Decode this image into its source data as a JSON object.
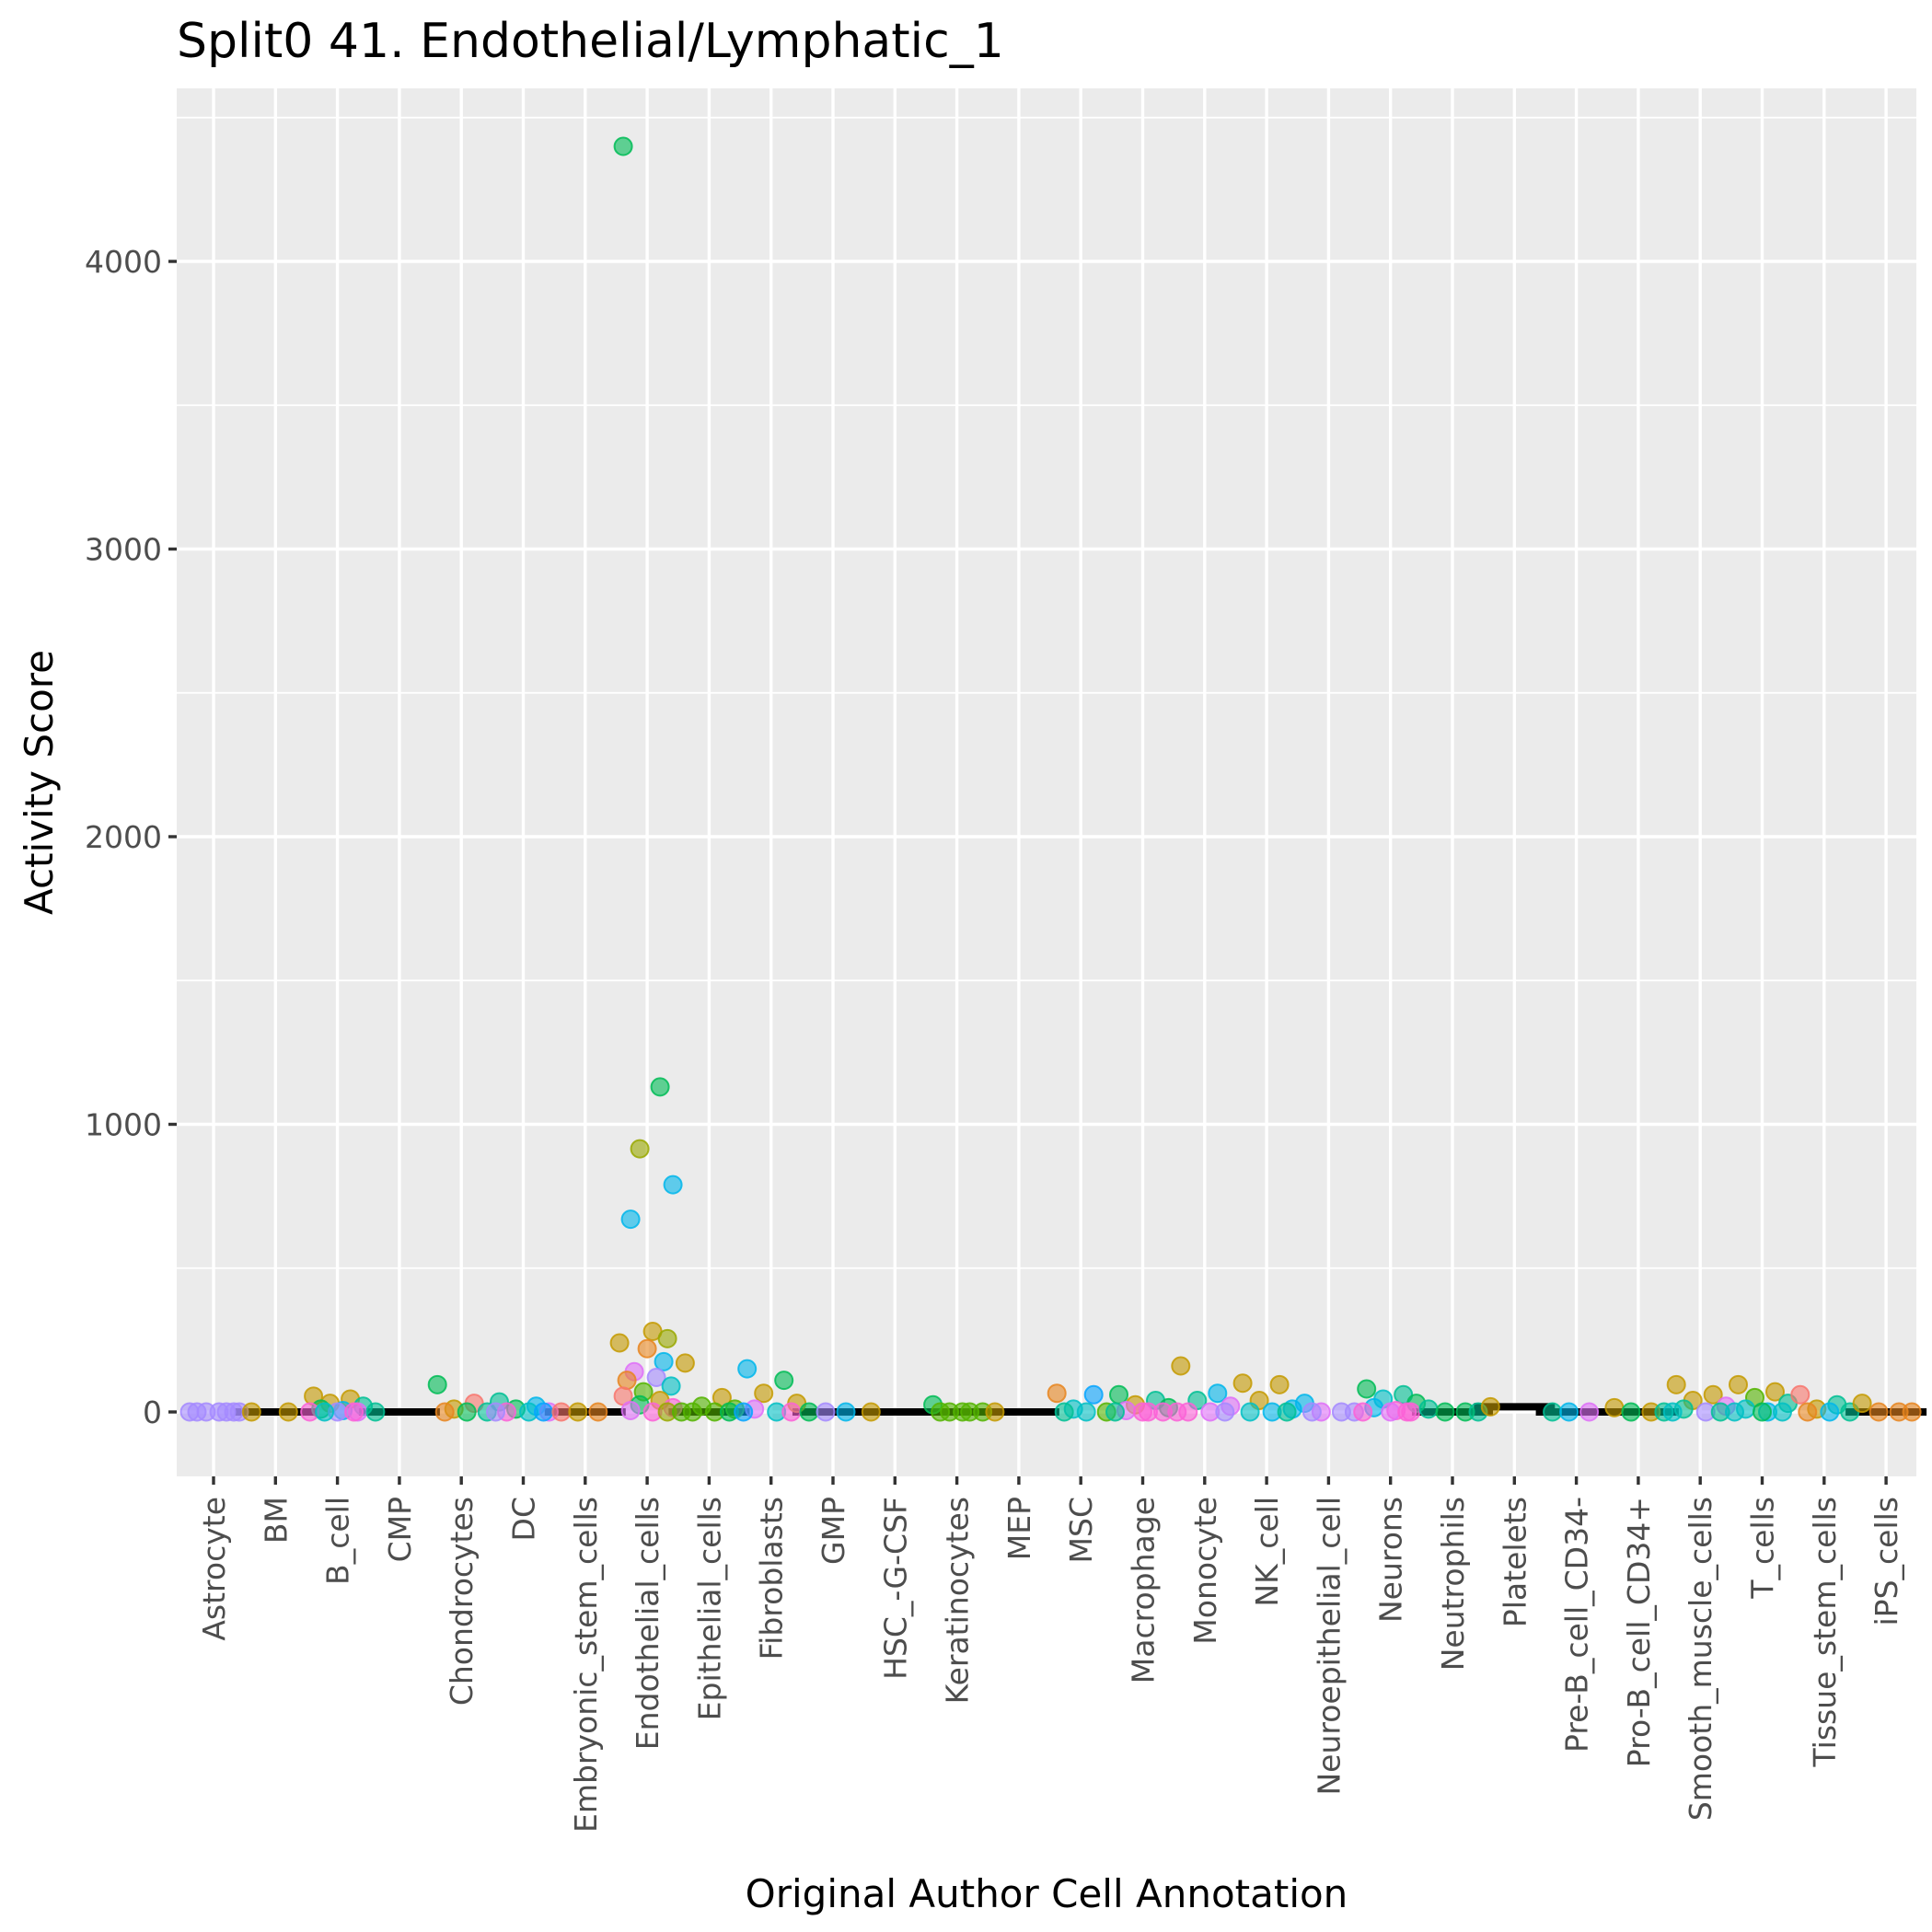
{
  "chart_data": {
    "type": "scatter",
    "title": "Split0 41. Endothelial/Lymphatic_1",
    "xlabel": "Original Author Cell Annotation",
    "ylabel": "Activity Score",
    "ylim": [
      -220,
      4550
    ],
    "yticks": [
      0,
      1000,
      2000,
      3000,
      4000
    ],
    "grid": true,
    "legend": "none",
    "categories": [
      "Astrocyte",
      "BM",
      "B_cell",
      "CMP",
      "Chondrocytes",
      "DC",
      "Embryonic_stem_cells",
      "Endothelial_cells",
      "Epithelial_cells",
      "Fibroblasts",
      "GMP",
      "HSC_-G-CSF",
      "Keratinocytes",
      "MEP",
      "MSC",
      "Macrophage",
      "Monocyte",
      "NK_cell",
      "Neuroepithelial_cell",
      "Neurons",
      "Neutrophils",
      "Platelets",
      "Pre-B_cell_CD34-",
      "Pro-B_cell_CD34+",
      "Smooth_muscle_cells",
      "T_cells",
      "Tissue_stem_cells",
      "iPS_cells"
    ],
    "colors": {
      "red": "#F8766D",
      "orange": "#E7851E",
      "olive": "#C49A00",
      "yellowgreen": "#99A800",
      "green": "#53B400",
      "green2": "#00BC56",
      "teal": "#00C094",
      "cyan": "#00BFC4",
      "sky": "#00B6EB",
      "blue": "#06A4FF",
      "purple": "#A58AFF",
      "magenta": "#DF70F8",
      "pink": "#FB61D7"
    },
    "medians": [
      {
        "category": "BM",
        "value": 0
      },
      {
        "category": "CMP",
        "value": 0
      },
      {
        "category": "Embryonic_stem_cells",
        "value": 0
      },
      {
        "category": "Epithelial_cells",
        "value": 0
      },
      {
        "category": "GMP",
        "value": 0
      },
      {
        "category": "HSC_-G-CSF",
        "value": 0
      },
      {
        "category": "Keratinocytes",
        "value": 0
      },
      {
        "category": "MEP",
        "value": 0
      },
      {
        "category": "Neutrophils",
        "value": 0
      },
      {
        "category": "Platelets",
        "value": 18
      },
      {
        "category": "Pre-B_cell_CD34-",
        "value": 0
      },
      {
        "category": "Pro-B_cell_CD34+",
        "value": 0
      },
      {
        "category": "iPS_cells",
        "value": 0
      }
    ],
    "points": [
      {
        "category": "Astrocyte",
        "value": 0,
        "color": "purple"
      },
      {
        "category": "Astrocyte",
        "value": 0,
        "color": "purple"
      },
      {
        "category": "Astrocyte",
        "value": 0,
        "color": "purple"
      },
      {
        "category": "Astrocyte",
        "value": 0,
        "color": "purple"
      },
      {
        "category": "Astrocyte",
        "value": 0,
        "color": "purple"
      },
      {
        "category": "Astrocyte",
        "value": 0,
        "color": "purple"
      },
      {
        "category": "Astrocyte",
        "value": 0,
        "color": "purple"
      },
      {
        "category": "BM",
        "value": 0,
        "color": "olive"
      },
      {
        "category": "BM",
        "value": 0,
        "color": "olive"
      },
      {
        "category": "B_cell",
        "value": 55,
        "color": "olive"
      },
      {
        "category": "B_cell",
        "value": 45,
        "color": "olive"
      },
      {
        "category": "B_cell",
        "value": 30,
        "color": "olive"
      },
      {
        "category": "B_cell",
        "value": 20,
        "color": "teal"
      },
      {
        "category": "B_cell",
        "value": 10,
        "color": "green2"
      },
      {
        "category": "B_cell",
        "value": 5,
        "color": "sky"
      },
      {
        "category": "B_cell",
        "value": 0,
        "color": "magenta"
      },
      {
        "category": "B_cell",
        "value": 0,
        "color": "pink"
      },
      {
        "category": "B_cell",
        "value": 0,
        "color": "purple"
      },
      {
        "category": "B_cell",
        "value": 0,
        "color": "pink"
      },
      {
        "category": "B_cell",
        "value": 0,
        "color": "cyan"
      },
      {
        "category": "CMP",
        "value": 0,
        "color": "teal"
      },
      {
        "category": "Chondrocytes",
        "value": 95,
        "color": "green2"
      },
      {
        "category": "Chondrocytes",
        "value": 30,
        "color": "red"
      },
      {
        "category": "Chondrocytes",
        "value": 10,
        "color": "olive"
      },
      {
        "category": "Chondrocytes",
        "value": 0,
        "color": "teal"
      },
      {
        "category": "Chondrocytes",
        "value": 0,
        "color": "orange"
      },
      {
        "category": "Chondrocytes",
        "value": 0,
        "color": "green2"
      },
      {
        "category": "DC",
        "value": 35,
        "color": "teal"
      },
      {
        "category": "DC",
        "value": 20,
        "color": "sky"
      },
      {
        "category": "DC",
        "value": 10,
        "color": "green2"
      },
      {
        "category": "DC",
        "value": 0,
        "color": "magenta"
      },
      {
        "category": "DC",
        "value": 0,
        "color": "pink"
      },
      {
        "category": "DC",
        "value": 0,
        "color": "cyan"
      },
      {
        "category": "DC",
        "value": 0,
        "color": "blue"
      },
      {
        "category": "DC",
        "value": 0,
        "color": "purple"
      },
      {
        "category": "Embryonic_stem_cells",
        "value": 0,
        "color": "red"
      },
      {
        "category": "Embryonic_stem_cells",
        "value": 0,
        "color": "orange"
      },
      {
        "category": "Embryonic_stem_cells",
        "value": 0,
        "color": "olive"
      },
      {
        "category": "Endothelial_cells",
        "value": 4400,
        "color": "green2"
      },
      {
        "category": "Endothelial_cells",
        "value": 1130,
        "color": "green2"
      },
      {
        "category": "Endothelial_cells",
        "value": 915,
        "color": "yellowgreen"
      },
      {
        "category": "Endothelial_cells",
        "value": 790,
        "color": "sky"
      },
      {
        "category": "Endothelial_cells",
        "value": 670,
        "color": "sky"
      },
      {
        "category": "Endothelial_cells",
        "value": 280,
        "color": "olive"
      },
      {
        "category": "Endothelial_cells",
        "value": 255,
        "color": "yellowgreen"
      },
      {
        "category": "Endothelial_cells",
        "value": 240,
        "color": "olive"
      },
      {
        "category": "Endothelial_cells",
        "value": 220,
        "color": "orange"
      },
      {
        "category": "Endothelial_cells",
        "value": 175,
        "color": "sky"
      },
      {
        "category": "Endothelial_cells",
        "value": 140,
        "color": "magenta"
      },
      {
        "category": "Endothelial_cells",
        "value": 120,
        "color": "purple"
      },
      {
        "category": "Endothelial_cells",
        "value": 110,
        "color": "orange"
      },
      {
        "category": "Endothelial_cells",
        "value": 90,
        "color": "cyan"
      },
      {
        "category": "Endothelial_cells",
        "value": 70,
        "color": "green"
      },
      {
        "category": "Endothelial_cells",
        "value": 55,
        "color": "red"
      },
      {
        "category": "Endothelial_cells",
        "value": 40,
        "color": "olive"
      },
      {
        "category": "Endothelial_cells",
        "value": 25,
        "color": "green2"
      },
      {
        "category": "Endothelial_cells",
        "value": 15,
        "color": "pink"
      },
      {
        "category": "Endothelial_cells",
        "value": 5,
        "color": "magenta"
      },
      {
        "category": "Endothelial_cells",
        "value": 0,
        "color": "pink"
      },
      {
        "category": "Endothelial_cells",
        "value": 0,
        "color": "yellowgreen"
      },
      {
        "category": "Epithelial_cells",
        "value": 170,
        "color": "olive"
      },
      {
        "category": "Epithelial_cells",
        "value": 50,
        "color": "olive"
      },
      {
        "category": "Epithelial_cells",
        "value": 20,
        "color": "green"
      },
      {
        "category": "Epithelial_cells",
        "value": 10,
        "color": "green"
      },
      {
        "category": "Epithelial_cells",
        "value": 0,
        "color": "green"
      },
      {
        "category": "Epithelial_cells",
        "value": 0,
        "color": "green"
      },
      {
        "category": "Epithelial_cells",
        "value": 0,
        "color": "green2"
      },
      {
        "category": "Epithelial_cells",
        "value": 0,
        "color": "green"
      },
      {
        "category": "Fibroblasts",
        "value": 150,
        "color": "sky"
      },
      {
        "category": "Fibroblasts",
        "value": 110,
        "color": "green2"
      },
      {
        "category": "Fibroblasts",
        "value": 65,
        "color": "olive"
      },
      {
        "category": "Fibroblasts",
        "value": 30,
        "color": "olive"
      },
      {
        "category": "Fibroblasts",
        "value": 10,
        "color": "magenta"
      },
      {
        "category": "Fibroblasts",
        "value": 0,
        "color": "cyan"
      },
      {
        "category": "Fibroblasts",
        "value": 0,
        "color": "pink"
      },
      {
        "category": "Fibroblasts",
        "value": 0,
        "color": "blue"
      },
      {
        "category": "GMP",
        "value": 0,
        "color": "green2"
      },
      {
        "category": "GMP",
        "value": 0,
        "color": "sky"
      },
      {
        "category": "GMP",
        "value": 0,
        "color": "purple"
      },
      {
        "category": "HSC_-G-CSF",
        "value": 0,
        "color": "olive"
      },
      {
        "category": "Keratinocytes",
        "value": 25,
        "color": "green2"
      },
      {
        "category": "Keratinocytes",
        "value": 0,
        "color": "green"
      },
      {
        "category": "Keratinocytes",
        "value": 0,
        "color": "green"
      },
      {
        "category": "Keratinocytes",
        "value": 0,
        "color": "green"
      },
      {
        "category": "Keratinocytes",
        "value": 0,
        "color": "green"
      },
      {
        "category": "Keratinocytes",
        "value": 0,
        "color": "green"
      },
      {
        "category": "MEP",
        "value": 0,
        "color": "olive"
      },
      {
        "category": "MSC",
        "value": 65,
        "color": "orange"
      },
      {
        "category": "MSC",
        "value": 60,
        "color": "blue"
      },
      {
        "category": "MSC",
        "value": 10,
        "color": "cyan"
      },
      {
        "category": "MSC",
        "value": 0,
        "color": "green"
      },
      {
        "category": "MSC",
        "value": 0,
        "color": "teal"
      },
      {
        "category": "MSC",
        "value": 0,
        "color": "cyan"
      },
      {
        "category": "Macrophage",
        "value": 60,
        "color": "green2"
      },
      {
        "category": "Macrophage",
        "value": 40,
        "color": "teal"
      },
      {
        "category": "Macrophage",
        "value": 25,
        "color": "olive"
      },
      {
        "category": "Macrophage",
        "value": 15,
        "color": "green2"
      },
      {
        "category": "Macrophage",
        "value": 5,
        "color": "magenta"
      },
      {
        "category": "Macrophage",
        "value": 0,
        "color": "pink"
      },
      {
        "category": "Macrophage",
        "value": 0,
        "color": "pink"
      },
      {
        "category": "Macrophage",
        "value": 0,
        "color": "teal"
      },
      {
        "category": "Macrophage",
        "value": 0,
        "color": "pink"
      },
      {
        "category": "Monocyte",
        "value": 160,
        "color": "olive"
      },
      {
        "category": "Monocyte",
        "value": 65,
        "color": "sky"
      },
      {
        "category": "Monocyte",
        "value": 40,
        "color": "teal"
      },
      {
        "category": "Monocyte",
        "value": 20,
        "color": "magenta"
      },
      {
        "category": "Monocyte",
        "value": 0,
        "color": "pink"
      },
      {
        "category": "Monocyte",
        "value": 0,
        "color": "magenta"
      },
      {
        "category": "Monocyte",
        "value": 0,
        "color": "purple"
      },
      {
        "category": "Monocyte",
        "value": 0,
        "color": "pink"
      },
      {
        "category": "NK_cell",
        "value": 100,
        "color": "olive"
      },
      {
        "category": "NK_cell",
        "value": 95,
        "color": "olive"
      },
      {
        "category": "NK_cell",
        "value": 40,
        "color": "olive"
      },
      {
        "category": "NK_cell",
        "value": 10,
        "color": "sky"
      },
      {
        "category": "NK_cell",
        "value": 0,
        "color": "cyan"
      },
      {
        "category": "NK_cell",
        "value": 0,
        "color": "sky"
      },
      {
        "category": "NK_cell",
        "value": 0,
        "color": "teal"
      },
      {
        "category": "Neuroepithelial_cell",
        "value": 30,
        "color": "sky"
      },
      {
        "category": "Neuroepithelial_cell",
        "value": 0,
        "color": "purple"
      },
      {
        "category": "Neuroepithelial_cell",
        "value": 0,
        "color": "magenta"
      },
      {
        "category": "Neuroepithelial_cell",
        "value": 0,
        "color": "purple"
      },
      {
        "category": "Neuroepithelial_cell",
        "value": 0,
        "color": "purple"
      },
      {
        "category": "Neurons",
        "value": 80,
        "color": "green2"
      },
      {
        "category": "Neurons",
        "value": 60,
        "color": "teal"
      },
      {
        "category": "Neurons",
        "value": 45,
        "color": "cyan"
      },
      {
        "category": "Neurons",
        "value": 30,
        "color": "green2"
      },
      {
        "category": "Neurons",
        "value": 15,
        "color": "sky"
      },
      {
        "category": "Neurons",
        "value": 5,
        "color": "pink"
      },
      {
        "category": "Neurons",
        "value": 0,
        "color": "pink"
      },
      {
        "category": "Neurons",
        "value": 0,
        "color": "pink"
      },
      {
        "category": "Neurons",
        "value": 0,
        "color": "magenta"
      },
      {
        "category": "Neurons",
        "value": 0,
        "color": "pink"
      },
      {
        "category": "Neutrophils",
        "value": 10,
        "color": "teal"
      },
      {
        "category": "Neutrophils",
        "value": 0,
        "color": "green2"
      },
      {
        "category": "Neutrophils",
        "value": 0,
        "color": "green2"
      },
      {
        "category": "Neutrophils",
        "value": 0,
        "color": "teal"
      },
      {
        "category": "Platelets",
        "value": 18,
        "color": "olive"
      },
      {
        "category": "Pre-B_cell_CD34-",
        "value": 0,
        "color": "teal"
      },
      {
        "category": "Pre-B_cell_CD34-",
        "value": 0,
        "color": "magenta"
      },
      {
        "category": "Pre-B_cell_CD34-",
        "value": 0,
        "color": "sky"
      },
      {
        "category": "Pro-B_cell_CD34+",
        "value": 15,
        "color": "olive"
      },
      {
        "category": "Pro-B_cell_CD34+",
        "value": 0,
        "color": "olive"
      },
      {
        "category": "Pro-B_cell_CD34+",
        "value": 0,
        "color": "green2"
      },
      {
        "category": "Pro-B_cell_CD34+",
        "value": 0,
        "color": "teal"
      },
      {
        "category": "Smooth_muscle_cells",
        "value": 95,
        "color": "olive"
      },
      {
        "category": "Smooth_muscle_cells",
        "value": 60,
        "color": "olive"
      },
      {
        "category": "Smooth_muscle_cells",
        "value": 40,
        "color": "olive"
      },
      {
        "category": "Smooth_muscle_cells",
        "value": 20,
        "color": "magenta"
      },
      {
        "category": "Smooth_muscle_cells",
        "value": 10,
        "color": "teal"
      },
      {
        "category": "Smooth_muscle_cells",
        "value": 0,
        "color": "purple"
      },
      {
        "category": "Smooth_muscle_cells",
        "value": 0,
        "color": "teal"
      },
      {
        "category": "Smooth_muscle_cells",
        "value": 0,
        "color": "cyan"
      },
      {
        "category": "T_cells",
        "value": 95,
        "color": "olive"
      },
      {
        "category": "T_cells",
        "value": 70,
        "color": "olive"
      },
      {
        "category": "T_cells",
        "value": 50,
        "color": "green"
      },
      {
        "category": "T_cells",
        "value": 30,
        "color": "teal"
      },
      {
        "category": "T_cells",
        "value": 10,
        "color": "cyan"
      },
      {
        "category": "T_cells",
        "value": 0,
        "color": "sky"
      },
      {
        "category": "T_cells",
        "value": 0,
        "color": "cyan"
      },
      {
        "category": "T_cells",
        "value": 0,
        "color": "cyan"
      },
      {
        "category": "T_cells",
        "value": 0,
        "color": "green2"
      },
      {
        "category": "Tissue_stem_cells",
        "value": 60,
        "color": "red"
      },
      {
        "category": "Tissue_stem_cells",
        "value": 25,
        "color": "teal"
      },
      {
        "category": "Tissue_stem_cells",
        "value": 10,
        "color": "olive"
      },
      {
        "category": "Tissue_stem_cells",
        "value": 0,
        "color": "teal"
      },
      {
        "category": "Tissue_stem_cells",
        "value": 0,
        "color": "orange"
      },
      {
        "category": "Tissue_stem_cells",
        "value": 0,
        "color": "sky"
      },
      {
        "category": "iPS_cells",
        "value": 30,
        "color": "olive"
      },
      {
        "category": "iPS_cells",
        "value": 0,
        "color": "orange"
      },
      {
        "category": "iPS_cells",
        "value": 0,
        "color": "orange"
      },
      {
        "category": "iPS_cells",
        "value": 0,
        "color": "orange"
      }
    ]
  }
}
